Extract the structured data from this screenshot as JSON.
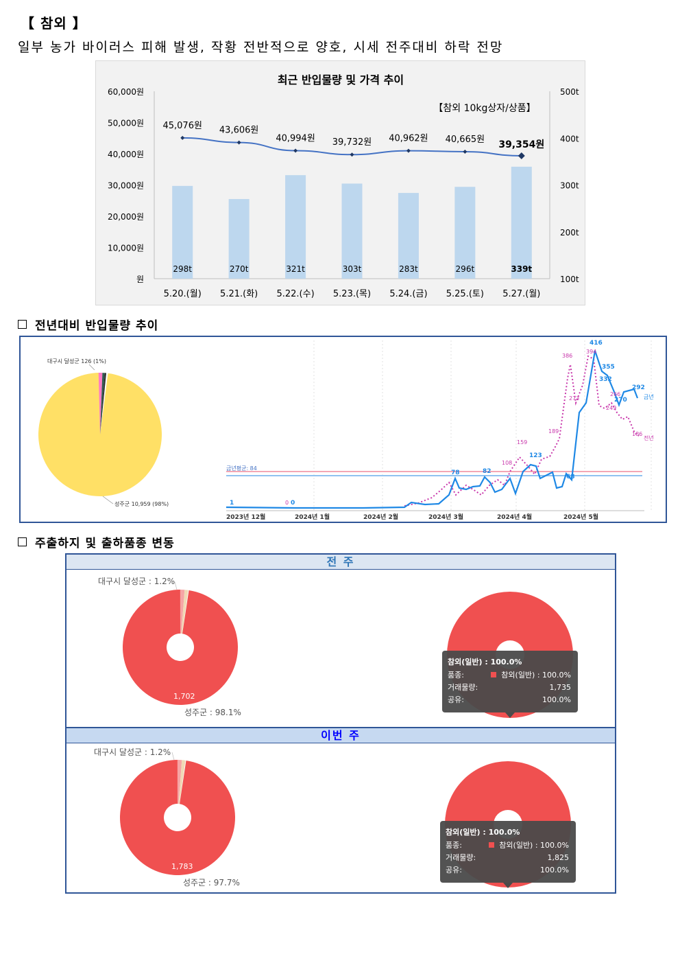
{
  "header": {
    "title": "【 참외 】",
    "subtitle": "일부 농가 바이러스 피해 발생, 작황 전반적으로 양호, 시세 전주대비 하락 전망"
  },
  "chart1": {
    "title": "최근 반입물량 및 가격 추이",
    "note": "【참외 10kg상자/상품】",
    "left_ticks": [
      "60,000원",
      "50,000원",
      "40,000원",
      "30,000원",
      "20,000원",
      "10,000원",
      "원"
    ],
    "right_ticks": [
      "500t",
      "400t",
      "300t",
      "200t",
      "100t"
    ]
  },
  "chart_data": [
    {
      "type": "bar",
      "title": "최근 반입물량 및 가격 추이",
      "categories": [
        "5.20.(월)",
        "5.21.(화)",
        "5.22.(수)",
        "5.23.(목)",
        "5.24.(금)",
        "5.25.(토)",
        "5.27.(월)"
      ],
      "series": [
        {
          "type": "bar",
          "axis": "right",
          "values": [
            298,
            270,
            321,
            303,
            283,
            296,
            339
          ],
          "labels": [
            "298t",
            "270t",
            "321t",
            "303t",
            "283t",
            "296t",
            "339t"
          ],
          "color": "#bdd7ee"
        },
        {
          "type": "line",
          "axis": "left",
          "values": [
            45076,
            43606,
            40994,
            39732,
            40962,
            40665,
            39354
          ],
          "labels": [
            "45,076원",
            "43,606원",
            "40,994원",
            "39,732원",
            "40,962원",
            "40,665원",
            "39,354원"
          ],
          "color": "#4472c4"
        }
      ],
      "ylim_left": [
        0,
        60000
      ],
      "ylim_right": [
        100,
        500
      ]
    },
    {
      "type": "pie",
      "slices": [
        {
          "label": "성주군 10,959 (98%)",
          "value": 98,
          "color": "#ffe066"
        },
        {
          "label": "대구시 달성군 126 (1%)",
          "value": 1,
          "color": "#ff7ac6"
        },
        {
          "label": "",
          "value": 0.6,
          "color": "#2f5d50"
        },
        {
          "label": "",
          "value": 0.4,
          "color": "#2d2d2d"
        }
      ]
    },
    {
      "type": "line",
      "x_ticks": [
        "2023년 12월",
        "2024년 1월",
        "2024년 2월",
        "2024년 3월",
        "2024년 4월",
        "2024년 5월"
      ],
      "avg_label": "금년평균: 84",
      "series": [
        {
          "name": "금년",
          "color": "#1e88e5",
          "annotated": [
            "1",
            "0",
            "78",
            "82",
            "123",
            "68",
            "416",
            "355",
            "332",
            "270",
            "292"
          ]
        },
        {
          "name": "전년",
          "color": "#c837ab",
          "annotated": [
            "0",
            "386",
            "394",
            "159",
            "108",
            "189",
            "273",
            "266",
            "249",
            "186"
          ]
        }
      ]
    },
    {
      "type": "pie",
      "label_top": "대구시 달성군 : 1.2%",
      "label_bottom": "성주군 : 98.1%",
      "inner_value": "1,702"
    },
    {
      "type": "pie",
      "label_top": "대구시 달성군 : 1.2%",
      "label_bottom": "성주군 : 97.7%",
      "inner_value": "1,783"
    }
  ],
  "section2": {
    "label": "전년대비 반입물량 추이"
  },
  "section3": {
    "label": "주출하지 및 출하품종 변동"
  },
  "band_prev": "전 주",
  "band_this": "이번 주",
  "tooltip_prev": {
    "title": "참외(일반) : 100.0%",
    "rows": [
      {
        "k": "품종:",
        "v": "참외(일반) : 100.0%"
      },
      {
        "k": "거래물량:",
        "v": "1,735"
      },
      {
        "k": "공유:",
        "v": "100.0%"
      }
    ]
  },
  "tooltip_this": {
    "title": "참외(일반) : 100.0%",
    "rows": [
      {
        "k": "품종:",
        "v": "참외(일반) : 100.0%"
      },
      {
        "k": "거래물량:",
        "v": "1,825"
      },
      {
        "k": "공유:",
        "v": "100.0%"
      }
    ]
  }
}
